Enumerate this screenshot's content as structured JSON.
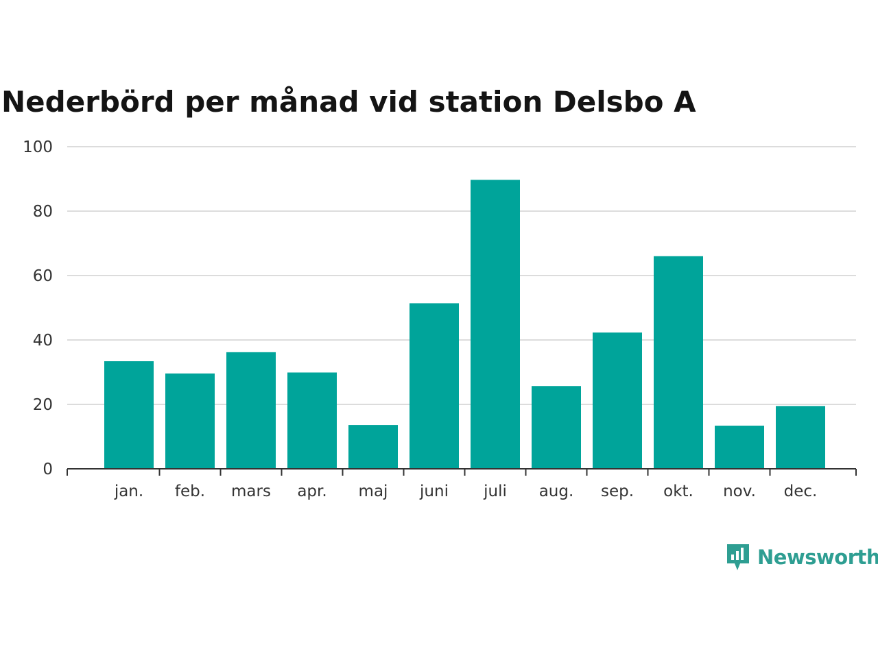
{
  "colors": {
    "bar": "#00a49a",
    "grid": "#dcdcdc",
    "axis": "#333333",
    "text": "#333333",
    "title": "#141414",
    "brand": "#2e9e92"
  },
  "brand": {
    "name": "Newsworthy",
    "icon": "newsworthy-logo-icon"
  },
  "chart_data": {
    "type": "bar",
    "title": "Nederbörd per månad vid station Delsbo A",
    "xlabel": "",
    "ylabel": "",
    "ylim": [
      0,
      100
    ],
    "yticks": [
      0,
      20,
      40,
      60,
      80,
      100
    ],
    "grid": true,
    "legend": "none",
    "categories": [
      "jan.",
      "feb.",
      "mars",
      "apr.",
      "maj",
      "juni",
      "juli",
      "aug.",
      "sep.",
      "okt.",
      "nov.",
      "dec."
    ],
    "values": [
      33.4,
      29.6,
      36.2,
      29.9,
      13.6,
      51.4,
      89.7,
      25.7,
      42.3,
      66.0,
      13.4,
      19.5
    ]
  }
}
